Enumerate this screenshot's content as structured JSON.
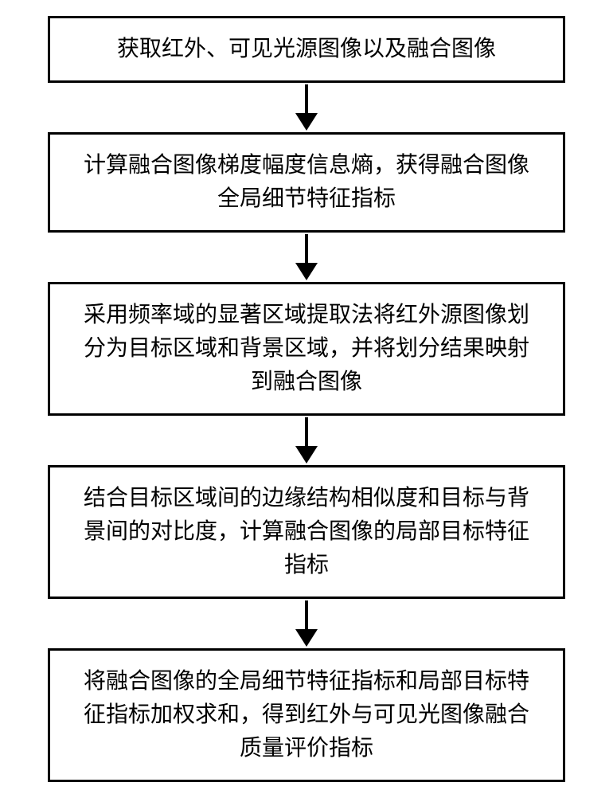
{
  "flowchart": {
    "type": "flowchart",
    "direction": "top-to-bottom",
    "background_color": "#ffffff",
    "node_style": {
      "border_color": "#000000",
      "border_width": 3,
      "fill_color": "#ffffff",
      "font_size": 28,
      "text_color": "#000000",
      "padding": 18
    },
    "arrow_style": {
      "line_color": "#000000",
      "line_width": 4,
      "line_length": 38,
      "head_width": 28,
      "head_height": 22
    },
    "nodes": [
      {
        "id": "n1",
        "text": "获取红外、可见光源图像以及融合图像"
      },
      {
        "id": "n2",
        "text": "计算融合图像梯度幅度信息熵，获得融合图像全局细节特征指标"
      },
      {
        "id": "n3",
        "text": "采用频率域的显著区域提取法将红外源图像划分为目标区域和背景区域，并将划分结果映射到融合图像"
      },
      {
        "id": "n4",
        "text": "结合目标区域间的边缘结构相似度和目标与背景间的对比度，计算融合图像的局部目标特征指标"
      },
      {
        "id": "n5",
        "text": "将融合图像的全局细节特征指标和局部目标特征指标加权求和，得到红外与可见光图像融合质量评价指标"
      }
    ],
    "edges": [
      {
        "from": "n1",
        "to": "n2"
      },
      {
        "from": "n2",
        "to": "n3"
      },
      {
        "from": "n3",
        "to": "n4"
      },
      {
        "from": "n4",
        "to": "n5"
      }
    ]
  }
}
